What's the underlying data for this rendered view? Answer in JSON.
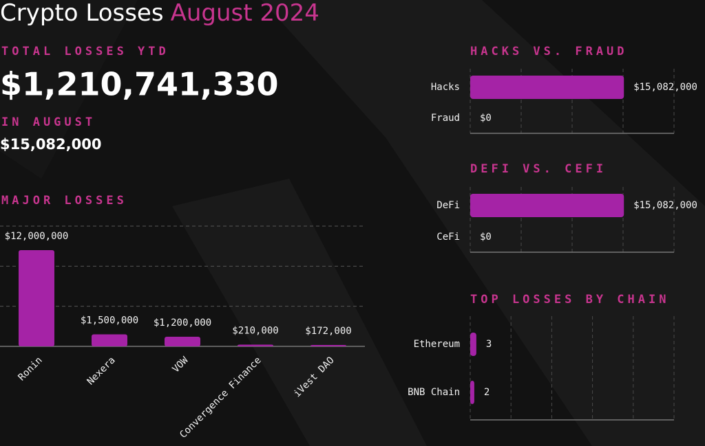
{
  "header": {
    "title": "Crypto Losses",
    "title_highlight": "August 2024"
  },
  "stats": [
    {
      "label": "TOTAL LOSSES YTD",
      "value": "$1,210,741,330"
    },
    {
      "label": "IN AUGUST",
      "value": "$15,082,000"
    }
  ],
  "chart_data": [
    {
      "type": "bar",
      "title": "MAJOR LOSSES",
      "categories": [
        "Ronin",
        "Nexera",
        "VOW",
        "Convergence Finance",
        "iVest DAO"
      ],
      "values": [
        12000000,
        1500000,
        1200000,
        210000,
        172000
      ],
      "value_labels": [
        "$12,000,000",
        "$1,500,000",
        "$1,200,000",
        "$210,000",
        "$172,000"
      ],
      "color": "#a523a6",
      "ylim": [
        0,
        15000000
      ],
      "yticks": [
        0,
        5000000,
        10000000,
        15000000
      ],
      "grid": true
    },
    {
      "type": "hbar",
      "title": "HACKS VS. FRAUD",
      "categories": [
        "Hacks",
        "Fraud"
      ],
      "values": [
        15082000,
        0
      ],
      "value_labels": [
        "$15,082,000",
        "$0"
      ],
      "color": "#a523a6",
      "xlim": [
        0,
        20000000
      ],
      "xticks": [
        0,
        5000000,
        10000000,
        15000000,
        20000000
      ],
      "grid": true
    },
    {
      "type": "hbar",
      "title": "DEFI VS. CEFI",
      "categories": [
        "DeFi",
        "CeFi"
      ],
      "values": [
        15082000,
        0
      ],
      "value_labels": [
        "$15,082,000",
        "$0"
      ],
      "color": "#a523a6",
      "xlim": [
        0,
        20000000
      ],
      "xticks": [
        0,
        5000000,
        10000000,
        15000000,
        20000000
      ],
      "grid": true
    },
    {
      "type": "hbar",
      "title": "TOP LOSSES BY CHAIN",
      "categories": [
        "Ethereum",
        "BNB Chain"
      ],
      "values": [
        3,
        2
      ],
      "color": "#a523a6",
      "xlim": [
        0,
        100
      ],
      "xticks": [
        0,
        20,
        40,
        60,
        80,
        100
      ],
      "grid": true
    }
  ]
}
